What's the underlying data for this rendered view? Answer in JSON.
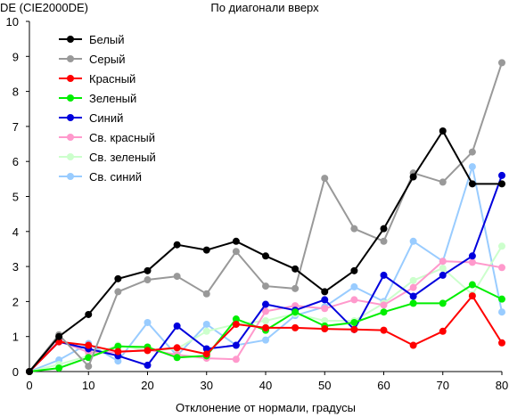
{
  "chart_data": {
    "type": "line",
    "title": "По диагонали вверх",
    "ylabel": "DE (CIE2000DE)",
    "xlabel": "Отклонение от нормали, градусы",
    "x": [
      0,
      5,
      10,
      15,
      20,
      25,
      30,
      35,
      40,
      45,
      50,
      55,
      60,
      65,
      70,
      75,
      80
    ],
    "xlim": [
      0,
      80
    ],
    "ylim": [
      0,
      10
    ],
    "xticks": [
      "0",
      "10",
      "20",
      "30",
      "40",
      "50",
      "60",
      "70",
      "80"
    ],
    "yticks": [
      "0",
      "1",
      "2",
      "3",
      "4",
      "5",
      "6",
      "7",
      "8",
      "9",
      "10"
    ],
    "grid": false,
    "legend": "top-left",
    "series": [
      {
        "name": "Белый",
        "color": "#000000",
        "values": [
          0,
          1.0,
          1.63,
          2.65,
          2.88,
          3.62,
          3.47,
          3.72,
          3.3,
          2.93,
          2.28,
          2.88,
          4.08,
          5.56,
          6.87,
          5.36,
          5.36
        ]
      },
      {
        "name": "Серый",
        "color": "#999999",
        "values": [
          0,
          1.05,
          0.15,
          2.28,
          2.62,
          2.72,
          2.22,
          3.43,
          2.44,
          2.37,
          5.52,
          4.08,
          3.72,
          5.67,
          5.41,
          6.27,
          8.82
        ]
      },
      {
        "name": "Красный",
        "color": "#ff0000",
        "values": [
          0,
          0.85,
          0.75,
          0.57,
          0.6,
          0.68,
          0.5,
          1.35,
          1.25,
          1.25,
          1.22,
          1.2,
          1.18,
          0.75,
          1.15,
          2.16,
          0.82
        ]
      },
      {
        "name": "Зеленый",
        "color": "#00ee00",
        "values": [
          0,
          0.1,
          0.4,
          0.72,
          0.7,
          0.4,
          0.45,
          1.5,
          1.18,
          1.7,
          1.3,
          1.4,
          1.7,
          1.95,
          1.95,
          2.48,
          2.07
        ]
      },
      {
        "name": "Синий",
        "color": "#0000dd",
        "values": [
          0,
          0.85,
          0.65,
          0.45,
          0.18,
          1.3,
          0.65,
          0.75,
          1.92,
          1.75,
          2.05,
          1.2,
          2.75,
          2.15,
          2.75,
          3.3,
          5.6
        ]
      },
      {
        "name": "Св. красный",
        "color": "#ff99cc",
        "values": [
          0,
          0.88,
          0.55,
          0.55,
          0.62,
          0.48,
          0.38,
          0.35,
          1.72,
          1.88,
          1.8,
          2.05,
          1.9,
          2.4,
          3.15,
          3.12,
          2.97
        ]
      },
      {
        "name": "Св. зеленый",
        "color": "#ccffcc",
        "values": [
          0,
          0.2,
          0.45,
          0.75,
          0.6,
          0.65,
          1.15,
          1.35,
          1.45,
          1.65,
          1.45,
          1.45,
          1.95,
          2.6,
          2.95,
          2.2,
          3.58
        ]
      },
      {
        "name": "Св. синий",
        "color": "#99ccff",
        "values": [
          0,
          0.33,
          0.8,
          0.3,
          1.4,
          0.45,
          1.35,
          0.75,
          0.9,
          1.6,
          1.85,
          2.42,
          2.0,
          3.72,
          3.15,
          5.85,
          1.7
        ]
      }
    ]
  }
}
